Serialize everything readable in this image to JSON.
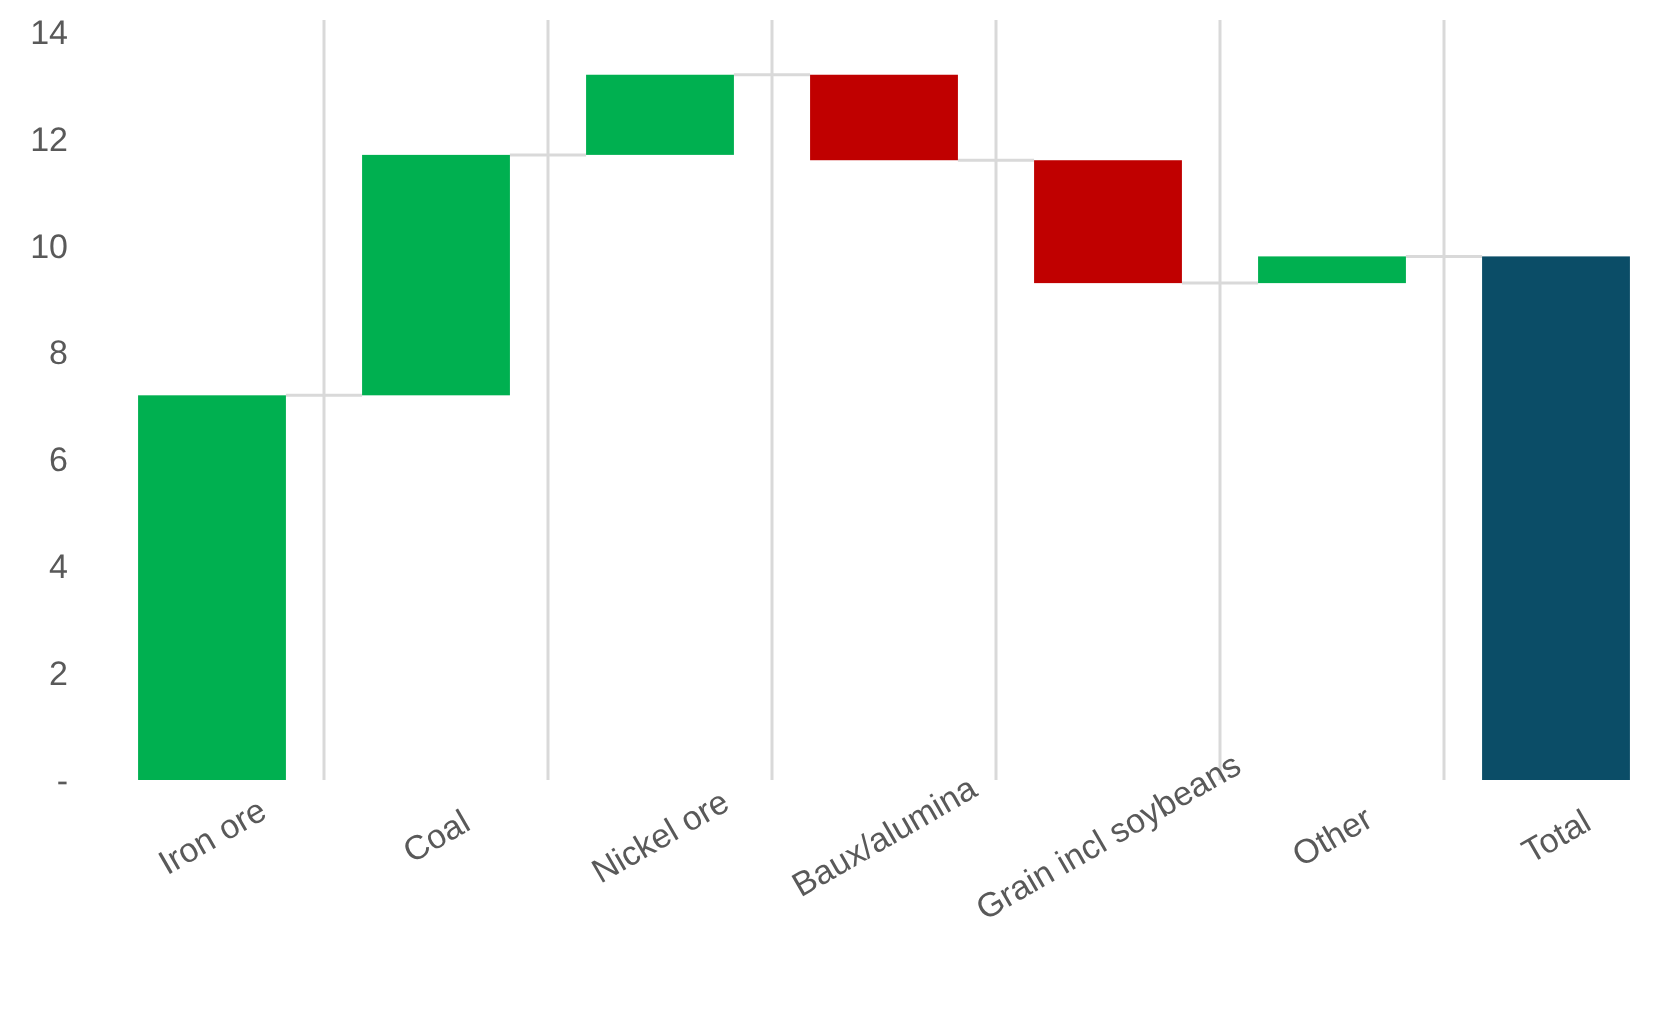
{
  "chart_data": {
    "type": "bar",
    "categories": [
      "Iron ore",
      "Coal",
      "Nickel ore",
      "Baux/alumina",
      "Grain incl soybeans",
      "Other",
      "Total"
    ],
    "values": [
      7.2,
      4.5,
      1.5,
      -1.6,
      -2.3,
      0.5,
      9.8
    ],
    "base": [
      0,
      7.2,
      11.7,
      13.2,
      11.6,
      9.3,
      0
    ],
    "colors": [
      "#00b050",
      "#00b050",
      "#00b050",
      "#c00000",
      "#c00000",
      "#00b050",
      "#0b4d67"
    ],
    "ylim": [
      0,
      14
    ],
    "yticks": [
      {
        "value": 0,
        "label": "-"
      },
      2,
      4,
      6,
      8,
      10,
      12,
      14
    ],
    "grid": "x"
  }
}
